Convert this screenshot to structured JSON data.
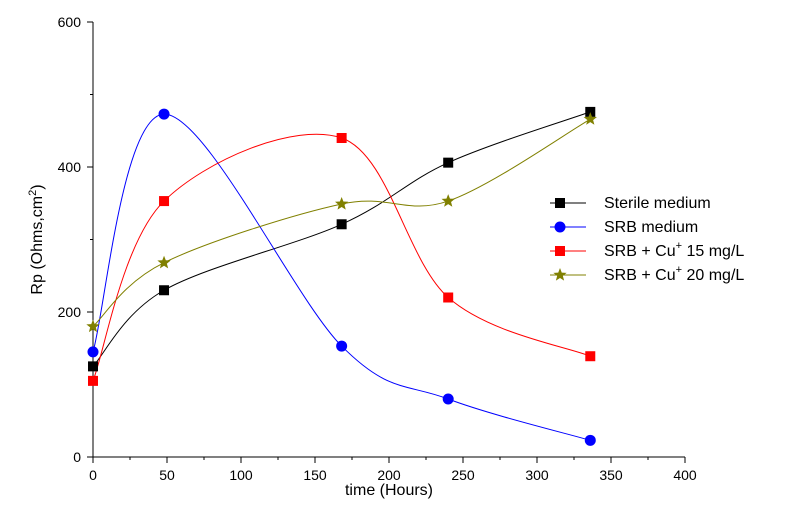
{
  "chart_data": {
    "type": "line",
    "xlabel": "time (Hours)",
    "ylabel": {
      "prefix": "Rp (Ohms,cm",
      "sup": "2",
      "suffix": ")"
    },
    "xlim": [
      0,
      400
    ],
    "ylim": [
      0,
      600
    ],
    "xticks": [
      0,
      50,
      100,
      150,
      200,
      250,
      300,
      350,
      400
    ],
    "yticks": [
      0,
      200,
      400,
      600
    ],
    "grid": false,
    "legend_position": "right",
    "smooth": true,
    "series": [
      {
        "name": "Sterile medium",
        "label": {
          "prefix": "Sterile medium",
          "sup": "",
          "suffix": ""
        },
        "color": "#000000",
        "marker": "square",
        "x": [
          0,
          48,
          168,
          240,
          336
        ],
        "y": [
          125,
          230,
          321,
          406,
          476
        ]
      },
      {
        "name": "SRB medium",
        "label": {
          "prefix": "SRB medium",
          "sup": "",
          "suffix": ""
        },
        "color": "#0000ff",
        "marker": "circle",
        "x": [
          0,
          48,
          168,
          240,
          336
        ],
        "y": [
          145,
          473,
          153,
          80,
          23
        ]
      },
      {
        "name": "SRB + Cu+ 15 mg/L",
        "label": {
          "prefix": "SRB + Cu",
          "sup": "+",
          "suffix": " 15 mg/L"
        },
        "color": "#ff0000",
        "marker": "square",
        "x": [
          0,
          48,
          168,
          240,
          336
        ],
        "y": [
          105,
          353,
          440,
          220,
          139
        ]
      },
      {
        "name": "SRB + Cu+ 20 mg/L",
        "label": {
          "prefix": "SRB + Cu",
          "sup": "+",
          "suffix": " 20 mg/L"
        },
        "color": "#808000",
        "marker": "star",
        "x": [
          0,
          48,
          168,
          240,
          336
        ],
        "y": [
          180,
          268,
          349,
          353,
          466
        ]
      }
    ]
  }
}
